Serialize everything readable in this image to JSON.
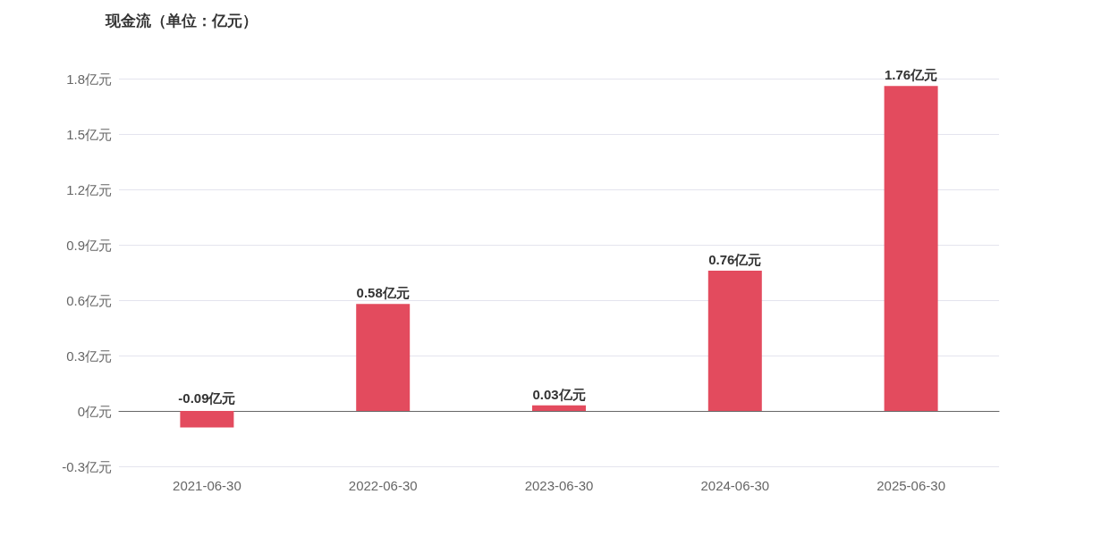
{
  "chart_data": {
    "type": "bar",
    "title": "现金流（单位：亿元）",
    "categories": [
      "2021-06-30",
      "2022-06-30",
      "2023-06-30",
      "2024-06-30",
      "2025-06-30"
    ],
    "values": [
      -0.09,
      0.58,
      0.03,
      0.76,
      1.76
    ],
    "value_labels": [
      "-0.09亿元",
      "0.58亿元",
      "0.03亿元",
      "0.76亿元",
      "1.76亿元"
    ],
    "color": "#e34b5e",
    "ylim": [
      -0.3,
      1.8
    ],
    "yticks": [
      {
        "value": -0.3,
        "label": "-0.3亿元"
      },
      {
        "value": 0,
        "label": "0亿元"
      },
      {
        "value": 0.3,
        "label": "0.3亿元"
      },
      {
        "value": 0.6,
        "label": "0.6亿元"
      },
      {
        "value": 0.9,
        "label": "0.9亿元"
      },
      {
        "value": 1.2,
        "label": "1.2亿元"
      },
      {
        "value": 1.5,
        "label": "1.5亿元"
      },
      {
        "value": 1.8,
        "label": "1.8亿元"
      }
    ],
    "grid": "y"
  }
}
